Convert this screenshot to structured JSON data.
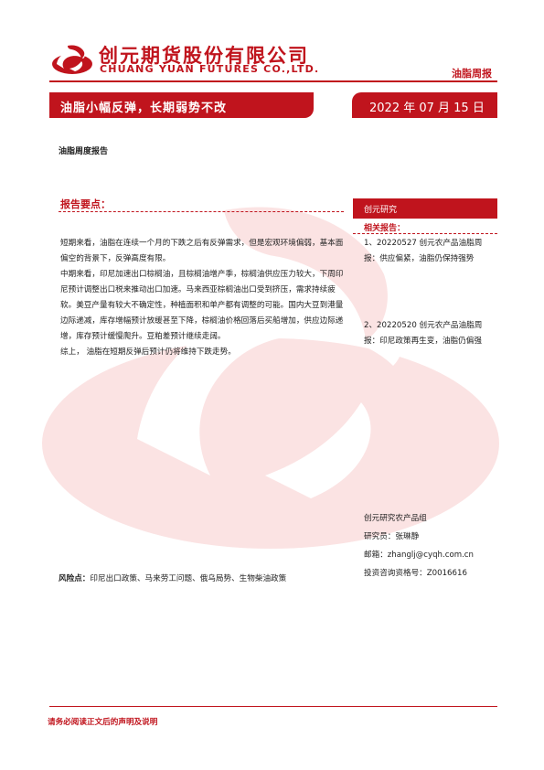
{
  "header": {
    "company_cn": "创元期货股份有限公司",
    "company_en": "CHUANG YUAN FUTURES CO.,LTD.",
    "tag": "油脂周报"
  },
  "title_bar": {
    "title": "油脂小幅反弹，长期弱势不改",
    "date": "2022 年 07 月 15 日"
  },
  "report_type": "油脂周度报告",
  "key_points": {
    "heading": "报告要点：",
    "paragraphs": [
      "短期来看，油脂在连续一个月的下跌之后有反弹需求，但是宏观环境偏弱，基本面偏空的背景下，反弹高度有限。",
      "中期来看，印尼加速出口棕榈油，且棕榈油增产季，棕榈油供应压力较大，下周印尼预计调整出口税来推动出口加速。马来西亚棕榈油出口受到挤压，需求持续疲软。美豆产量有较大不确定性，种植面积和单产都有调整的可能。国内大豆到港量边际递减，库存增幅预计放缓甚至下降，棕榈油价格回落后买船增加，供应边际递增，库存预计缓慢爬升。豆粕差预计继续走阔。",
      "综上，  油脂在短期反弹后预计仍将维持下跌走势。"
    ]
  },
  "sidebar": {
    "header": "创元研究",
    "related_label": "相关报告：",
    "related": [
      "1、20220527 创元农产品油脂周报：供应偏紧，油脂仍保持强势",
      "2、20220520 创元农产品油脂周报：印尼政策再生变，油脂仍偏强"
    ],
    "contact": {
      "group": "创元研究农产品组",
      "researcher": "研究员：张琳静",
      "email": "邮箱：zhanglj@cyqh.com.cn",
      "license": "投资咨询资格号：Z0016616"
    }
  },
  "risk": {
    "label": "风险点：",
    "text": "印尼出口政策、马来劳工问题、俄乌局势、生物柴油政策"
  },
  "footer": {
    "disclaimer": "请务必阅读正文后的声明及说明"
  },
  "colors": {
    "brand_red": "#c0141d",
    "watermark": "#fbe3e3"
  },
  "icons": {
    "logo": "company-logo-mark",
    "watermark": "company-logo-watermark"
  }
}
